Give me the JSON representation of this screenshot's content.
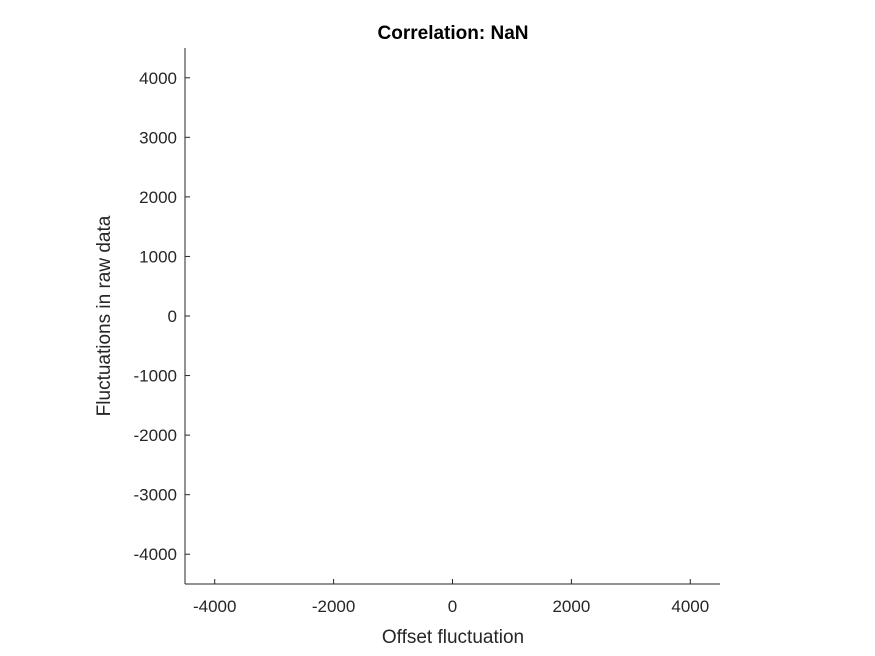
{
  "chart_data": {
    "type": "scatter",
    "title": "Correlation: NaN",
    "xlabel": "Offset fluctuation",
    "ylabel": "Fluctuations in raw data",
    "xlim": [
      -4500,
      4500
    ],
    "ylim": [
      -4500,
      4500
    ],
    "xticks": [
      -4000,
      -2000,
      0,
      2000,
      4000
    ],
    "yticks": [
      4000,
      3000,
      2000,
      1000,
      0,
      -1000,
      -2000,
      -3000,
      -4000
    ],
    "grid": false,
    "series": [
      {
        "x": [],
        "y": []
      }
    ]
  }
}
